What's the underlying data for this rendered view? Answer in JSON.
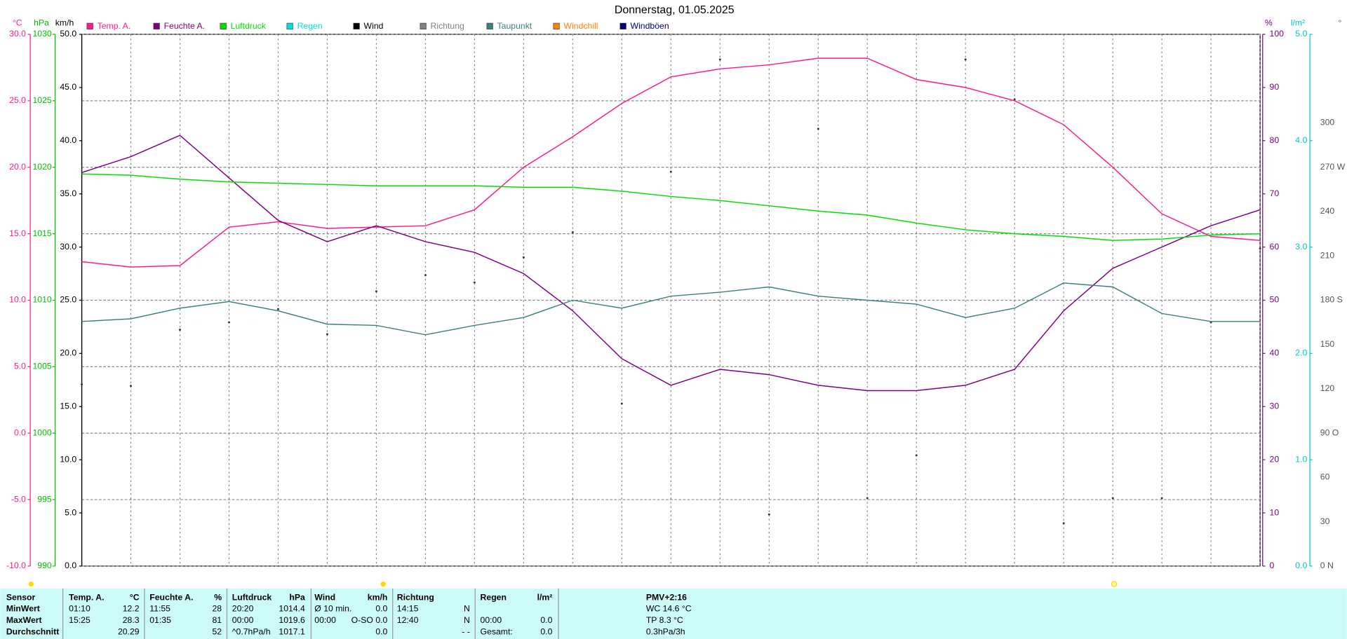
{
  "chart_data": {
    "type": "line",
    "title": "Donnerstag, 01.05.2025",
    "xlim": [
      0,
      24
    ],
    "xticks": [
      0,
      1,
      2,
      3,
      4,
      5,
      6,
      7,
      8,
      9,
      10,
      11,
      12,
      13,
      14,
      15,
      16,
      17,
      18,
      19,
      20,
      21,
      22,
      23,
      24
    ],
    "grid": true,
    "axes": {
      "temp": {
        "label": "°C",
        "color": "#ff1a8c",
        "lim": [
          -10,
          30
        ],
        "ticks": [
          {
            "value": -10,
            "label": "-10.0"
          },
          {
            "value": -5,
            "label": "-5.0"
          },
          {
            "value": 0,
            "label": "0.0"
          },
          {
            "value": 5,
            "label": "5.0"
          },
          {
            "value": 10,
            "label": "10.0"
          },
          {
            "value": 15,
            "label": "15.0"
          },
          {
            "value": 20,
            "label": "20.0"
          },
          {
            "value": 25,
            "label": "25.0"
          },
          {
            "value": 30,
            "label": "30.0"
          }
        ]
      },
      "press": {
        "label": "hPa",
        "color": "#00c000",
        "lim": [
          990,
          1030
        ],
        "ticks": [
          990,
          995,
          1000,
          1005,
          1010,
          1015,
          1020,
          1025,
          1030
        ]
      },
      "wind": {
        "label": "km/h",
        "color": "#000000",
        "lim": [
          0,
          50
        ],
        "ticks": [
          {
            "value": 0,
            "label": "0.0"
          },
          {
            "value": 5,
            "label": "5.0"
          },
          {
            "value": 10,
            "label": "10.0"
          },
          {
            "value": 15,
            "label": "15.0"
          },
          {
            "value": 20,
            "label": "20.0"
          },
          {
            "value": 25,
            "label": "25.0"
          },
          {
            "value": 30,
            "label": "30.0"
          },
          {
            "value": 35,
            "label": "35.0"
          },
          {
            "value": 40,
            "label": "40.0"
          },
          {
            "value": 45,
            "label": "45.0"
          },
          {
            "value": 50,
            "label": "50.0"
          }
        ]
      },
      "hum": {
        "label": "%",
        "color": "#800080",
        "lim": [
          0,
          100
        ],
        "ticks": [
          0,
          10,
          20,
          30,
          40,
          50,
          60,
          70,
          80,
          90,
          100
        ]
      },
      "rain": {
        "label": "l/m²",
        "color": "#00c8c8",
        "lim": [
          0,
          5
        ],
        "ticks": [
          {
            "value": 0,
            "label": "0.0"
          },
          {
            "value": 1,
            "label": "1.0"
          },
          {
            "value": 2,
            "label": "2.0"
          },
          {
            "value": 3,
            "label": "3.0"
          },
          {
            "value": 4,
            "label": "4.0"
          },
          {
            "value": 5,
            "label": "5.0"
          }
        ]
      },
      "dir": {
        "label": "°",
        "color": "#555555",
        "lim": [
          0,
          360
        ],
        "ticks": [
          {
            "value": 0,
            "label": "0 N"
          },
          30,
          60,
          {
            "value": 90,
            "label": "90 O"
          },
          120,
          150,
          {
            "value": 180,
            "label": "180 S"
          },
          210,
          240,
          {
            "value": 270,
            "label": "270 W"
          },
          300
        ]
      }
    },
    "x": [
      0,
      1,
      2,
      3,
      4,
      5,
      6,
      7,
      8,
      9,
      10,
      11,
      12,
      13,
      14,
      15,
      16,
      17,
      18,
      19,
      20,
      21,
      22,
      23,
      24
    ],
    "series": [
      {
        "name": "Temp. A.",
        "color": "#ff1a8c",
        "axis": "temp",
        "values": [
          12.9,
          12.5,
          12.6,
          15.5,
          15.9,
          15.4,
          15.5,
          15.6,
          16.8,
          20.0,
          22.3,
          24.8,
          26.8,
          27.4,
          27.7,
          28.2,
          28.2,
          26.6,
          26.0,
          25.0,
          23.2,
          20.0,
          16.5,
          14.8,
          14.5
        ]
      },
      {
        "name": "Feuchte A.",
        "color": "#800080",
        "axis": "hum",
        "values": [
          74,
          77,
          81,
          73,
          65,
          61,
          64,
          61,
          59,
          55,
          48,
          39,
          34,
          37,
          36,
          34,
          33,
          33,
          34,
          37,
          48,
          56,
          60,
          64,
          67
        ]
      },
      {
        "name": "Luftdruck",
        "color": "#00e000",
        "axis": "press",
        "values": [
          1019.5,
          1019.4,
          1019.1,
          1018.9,
          1018.8,
          1018.7,
          1018.6,
          1018.6,
          1018.6,
          1018.5,
          1018.5,
          1018.2,
          1017.8,
          1017.5,
          1017.1,
          1016.7,
          1016.4,
          1015.8,
          1015.3,
          1015.0,
          1014.8,
          1014.5,
          1014.6,
          1014.9,
          1015.0
        ]
      },
      {
        "name": "Regen",
        "color": "#00e0e0"
      },
      {
        "name": "Wind",
        "color": "#000000"
      },
      {
        "name": "Richtung",
        "color": "#808080",
        "axis": "dir",
        "marker": "dot",
        "values": [
          123,
          122,
          160,
          165,
          174,
          157,
          186,
          197,
          192,
          209,
          226,
          110,
          267,
          343,
          35,
          296,
          46,
          75,
          343,
          316,
          29,
          46,
          46,
          165,
          215
        ]
      },
      {
        "name": "Taupunkt",
        "color": "#408080",
        "axis": "temp",
        "values": [
          8.4,
          8.6,
          9.4,
          9.9,
          9.2,
          8.2,
          8.1,
          7.4,
          8.1,
          8.7,
          10.0,
          9.4,
          10.3,
          10.6,
          11.0,
          10.3,
          10.0,
          9.7,
          8.7,
          9.4,
          11.3,
          11.0,
          9.0,
          8.4,
          8.4
        ]
      },
      {
        "name": "Windchill",
        "color": "#ff8000"
      },
      {
        "name": "Windböen",
        "color": "#000080"
      }
    ]
  },
  "stats": {
    "header": [
      "Sensor",
      "Temp. A.",
      "°C",
      "Feuchte A.",
      "%",
      "Luftdruck",
      "hPa",
      "Wind",
      "km/h",
      "Richtung",
      null,
      "Regen",
      "l/m²",
      "PMV+2:16"
    ],
    "rows": [
      [
        "MinWert",
        "01:10",
        "12.2",
        "11:55",
        "28",
        "20:20",
        "1014.4",
        "Ø 10 min.",
        "0.0",
        "14:15",
        "N",
        null,
        null,
        "WC 14.6 °C"
      ],
      [
        "MaxWert",
        "15:25",
        "28.3",
        "01:35",
        "81",
        "00:00",
        "1019.6",
        "00:00",
        "O-SO 0.0",
        "12:40",
        "N",
        "00:00",
        "0.0",
        "TP 8.3 °C"
      ],
      [
        "Durchschnitt",
        null,
        "20.29",
        null,
        "52",
        "^0.7hPa/h",
        "1017.1",
        null,
        "0.0",
        null,
        "- -",
        "Gesamt:",
        "0.0",
        "0.3hPa/3h"
      ]
    ]
  }
}
